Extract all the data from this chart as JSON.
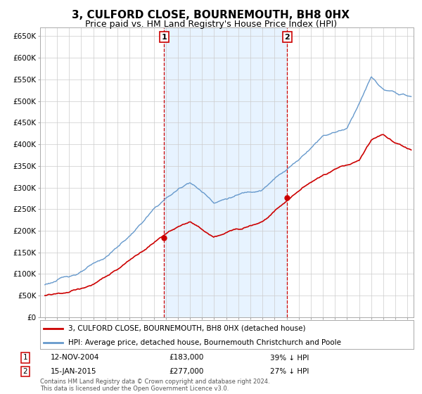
{
  "title": "3, CULFORD CLOSE, BOURNEMOUTH, BH8 0HX",
  "subtitle": "Price paid vs. HM Land Registry's House Price Index (HPI)",
  "ytick_values": [
    0,
    50000,
    100000,
    150000,
    200000,
    250000,
    300000,
    350000,
    400000,
    450000,
    500000,
    550000,
    600000,
    650000
  ],
  "ylim": [
    0,
    670000
  ],
  "xlim_start": 1994.6,
  "xlim_end": 2025.5,
  "sale1_x": 2004.87,
  "sale1_y": 183000,
  "sale1_label": "1",
  "sale1_date": "12-NOV-2004",
  "sale1_price": "£183,000",
  "sale1_note": "39% ↓ HPI",
  "sale2_x": 2015.04,
  "sale2_y": 277000,
  "sale2_label": "2",
  "sale2_date": "15-JAN-2015",
  "sale2_price": "£277,000",
  "sale2_note": "27% ↓ HPI",
  "legend_line1": "3, CULFORD CLOSE, BOURNEMOUTH, BH8 0HX (detached house)",
  "legend_line2": "HPI: Average price, detached house, Bournemouth Christchurch and Poole",
  "footer": "Contains HM Land Registry data © Crown copyright and database right 2024.\nThis data is licensed under the Open Government Licence v3.0.",
  "line_color_red": "#cc0000",
  "line_color_blue": "#6699cc",
  "shade_color": "#ddeeff",
  "background_color": "#ffffff",
  "grid_color": "#cccccc",
  "title_fontsize": 11,
  "subtitle_fontsize": 9
}
